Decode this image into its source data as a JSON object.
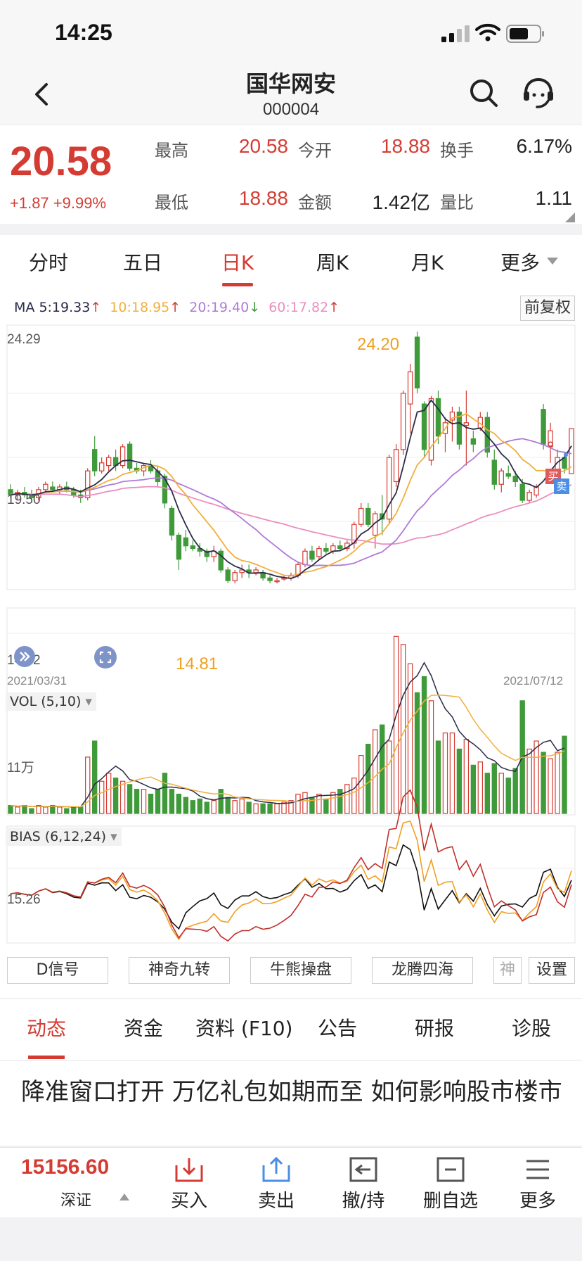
{
  "status_bar": {
    "time": "14:25"
  },
  "header": {
    "title": "国华网安",
    "code": "000004"
  },
  "quote": {
    "price": "20.58",
    "change": "+1.87 +9.99%",
    "stats": [
      {
        "label": "最高",
        "value": "20.58"
      },
      {
        "label": "今开",
        "value": "18.88"
      },
      {
        "label": "换手",
        "value": "6.17%"
      },
      {
        "label": "最低",
        "value": "18.88"
      },
      {
        "label": "金额",
        "value": "1.42亿"
      },
      {
        "label": "量比",
        "value": "1.11"
      }
    ]
  },
  "period_tabs": [
    "分时",
    "五日",
    "日K",
    "周K",
    "月K",
    "更多"
  ],
  "active_period": "日K",
  "ma_legend": {
    "ma": "MA",
    "ma5": "5:19.33",
    "ma10": "10:18.95",
    "ma20": "20:19.40",
    "ma60": "60:17.82"
  },
  "adjust_button": "前复权",
  "main_chart_labels": {
    "y_top": "24.29",
    "y_mid": "19.50",
    "y_bottom": "14.72",
    "high_marker": "24.20",
    "low_marker": "14.81",
    "date_start": "2021/03/31",
    "date_end": "2021/07/12",
    "buy_tag": "买",
    "sell_tag": "卖"
  },
  "vol_panel": {
    "label": "VOL (5,10)",
    "y_label": "11万"
  },
  "bias_panel": {
    "label": "BIAS (6,12,24)",
    "y_label": "15.26"
  },
  "function_buttons": [
    "D信号",
    "神奇九转",
    "牛熊操盘",
    "龙腾四海",
    "神",
    "设置"
  ],
  "detail_tabs": [
    "动态",
    "资金",
    "资料 (F10)",
    "公告",
    "研报",
    "诊股"
  ],
  "news_headline": "降准窗口打开 万亿礼包如期而至 如何影响股市楼市",
  "bottom_bar": {
    "index_value": "15156.60",
    "index_name": "深证",
    "buttons": [
      "买入",
      "卖出",
      "撤/持",
      "删自选",
      "更多"
    ]
  },
  "colors": {
    "up": "#d43c33",
    "down": "#3f9a3a",
    "ma5": "#2b2b4a",
    "ma10": "#f0b03c",
    "ma20": "#b07ad8",
    "ma60": "#ea8ec0",
    "blue_button": "#4a8ee6"
  },
  "chart_data": [
    {
      "type": "candlestick",
      "title": "",
      "date_range": [
        "2021/03/31",
        "2021/07/12"
      ],
      "ylim": [
        14.72,
        24.29
      ],
      "y_ticks": [
        24.29,
        19.5,
        14.72
      ],
      "annotations": [
        {
          "label": "24.20",
          "kind": "high"
        },
        {
          "label": "14.81",
          "kind": "low"
        }
      ],
      "series": [
        {
          "name": "MA5",
          "latest": 19.33
        },
        {
          "name": "MA10",
          "latest": 18.95
        },
        {
          "name": "MA20",
          "latest": 19.4
        },
        {
          "name": "MA60",
          "latest": 17.82
        }
      ],
      "ohlc": [
        [
          18.3,
          18.5,
          18.0,
          18.1
        ],
        [
          18.1,
          18.3,
          17.9,
          18.2
        ],
        [
          18.2,
          18.4,
          18.0,
          18.1
        ],
        [
          18.1,
          18.3,
          17.9,
          18.0
        ],
        [
          18.0,
          18.4,
          17.9,
          18.3
        ],
        [
          18.3,
          18.6,
          18.2,
          18.5
        ],
        [
          18.4,
          18.6,
          18.2,
          18.3
        ],
        [
          18.3,
          18.5,
          18.1,
          18.4
        ],
        [
          18.4,
          18.6,
          18.2,
          18.3
        ],
        [
          18.3,
          18.4,
          18.0,
          18.1
        ],
        [
          18.1,
          18.3,
          17.8,
          18.0
        ],
        [
          18.0,
          19.1,
          17.9,
          19.0
        ],
        [
          19.8,
          20.3,
          18.8,
          19.0
        ],
        [
          19.0,
          19.5,
          18.9,
          19.3
        ],
        [
          19.2,
          19.6,
          19.0,
          19.5
        ],
        [
          19.5,
          19.8,
          19.0,
          19.2
        ],
        [
          19.2,
          20.0,
          19.1,
          19.9
        ],
        [
          20.0,
          20.1,
          19.0,
          19.1
        ],
        [
          19.1,
          19.3,
          18.9,
          19.0
        ],
        [
          19.0,
          19.3,
          18.8,
          19.2
        ],
        [
          19.2,
          19.4,
          18.9,
          19.0
        ],
        [
          19.0,
          19.2,
          18.4,
          18.6
        ],
        [
          18.8,
          18.9,
          17.6,
          17.8
        ],
        [
          17.6,
          17.7,
          16.4,
          16.6
        ],
        [
          16.6,
          16.7,
          15.3,
          15.7
        ],
        [
          16.5,
          16.8,
          16.0,
          16.2
        ],
        [
          16.2,
          16.4,
          16.0,
          16.1
        ],
        [
          16.1,
          16.3,
          15.8,
          16.0
        ],
        [
          16.0,
          16.1,
          15.6,
          15.8
        ],
        [
          15.8,
          16.2,
          15.6,
          16.0
        ],
        [
          16.0,
          16.1,
          15.2,
          15.3
        ],
        [
          15.3,
          15.4,
          14.81,
          14.9
        ],
        [
          14.9,
          15.3,
          14.8,
          15.2
        ],
        [
          15.2,
          15.5,
          15.0,
          15.3
        ],
        [
          15.3,
          15.5,
          15.0,
          15.2
        ],
        [
          15.2,
          15.4,
          15.1,
          15.3
        ],
        [
          15.2,
          15.3,
          14.9,
          15.0
        ],
        [
          15.0,
          15.1,
          14.8,
          14.9
        ],
        [
          14.9,
          15.0,
          14.8,
          14.9
        ],
        [
          15.0,
          15.1,
          14.9,
          15.0
        ],
        [
          15.0,
          15.2,
          14.9,
          15.1
        ],
        [
          15.1,
          15.6,
          15.0,
          15.5
        ],
        [
          15.5,
          16.1,
          15.4,
          16.0
        ],
        [
          16.0,
          16.2,
          15.6,
          15.7
        ],
        [
          15.8,
          16.2,
          15.7,
          16.1
        ],
        [
          16.1,
          16.3,
          15.9,
          16.0
        ],
        [
          16.0,
          16.3,
          15.9,
          16.2
        ],
        [
          16.2,
          16.4,
          16.0,
          16.1
        ],
        [
          16.1,
          16.4,
          16.0,
          16.3
        ],
        [
          16.3,
          17.1,
          16.1,
          17.0
        ],
        [
          17.0,
          17.8,
          16.9,
          17.6
        ],
        [
          17.6,
          17.8,
          16.9,
          17.0
        ],
        [
          16.6,
          17.5,
          16.1,
          17.4
        ],
        [
          17.4,
          18.1,
          16.6,
          17.2
        ],
        [
          17.2,
          19.6,
          17.0,
          19.5
        ],
        [
          18.6,
          20.0,
          18.4,
          19.8
        ],
        [
          19.8,
          22.0,
          19.6,
          21.9
        ],
        [
          21.5,
          23.0,
          20.4,
          22.7
        ],
        [
          24.0,
          24.2,
          21.9,
          22.1
        ],
        [
          21.5,
          21.6,
          19.5,
          19.8
        ],
        [
          19.4,
          21.8,
          19.2,
          21.7
        ],
        [
          21.7,
          22.0,
          20.0,
          20.3
        ],
        [
          20.4,
          21.0,
          19.7,
          20.8
        ],
        [
          20.9,
          21.4,
          20.1,
          21.2
        ],
        [
          21.2,
          21.4,
          19.8,
          20.0
        ],
        [
          20.7,
          22.0,
          19.2,
          20.8
        ],
        [
          20.2,
          20.5,
          19.7,
          20.0
        ],
        [
          20.6,
          21.2,
          20.5,
          21.0
        ],
        [
          21.0,
          21.2,
          19.5,
          19.7
        ],
        [
          19.4,
          19.8,
          18.3,
          18.5
        ],
        [
          18.5,
          19.1,
          18.2,
          19.0
        ],
        [
          18.9,
          19.2,
          18.7,
          18.8
        ],
        [
          18.8,
          19.0,
          18.4,
          18.6
        ],
        [
          18.5,
          18.7,
          17.8,
          17.9
        ],
        [
          17.9,
          18.3,
          17.8,
          18.2
        ],
        [
          18.1,
          18.5,
          18.0,
          18.4
        ],
        [
          21.3,
          21.5,
          19.8,
          20.0
        ],
        [
          19.9,
          20.8,
          19.3,
          20.5
        ],
        [
          19.0,
          19.8,
          18.8,
          19.5
        ],
        [
          19.5,
          19.7,
          18.9,
          19.1
        ],
        [
          18.9,
          20.6,
          18.9,
          20.58
        ]
      ],
      "volume_wan": [
        0.5,
        0.4,
        0.5,
        0.3,
        0.5,
        0.4,
        0.5,
        0.4,
        0.3,
        0.4,
        0.4,
        3.5,
        4.5,
        2.0,
        2.5,
        2.2,
        2.0,
        1.8,
        1.5,
        1.5,
        1.2,
        1.5,
        2.5,
        1.5,
        1.2,
        1.0,
        0.8,
        0.9,
        0.7,
        0.8,
        1.5,
        1.0,
        0.8,
        0.9,
        0.7,
        0.6,
        0.6,
        0.6,
        0.6,
        0.7,
        0.8,
        1.2,
        1.3,
        1.0,
        1.2,
        0.9,
        1.3,
        1.5,
        1.8,
        2.2,
        3.6,
        4.3,
        5.2,
        5.5,
        4.5,
        11.0,
        10.5,
        9.3,
        7.5,
        8.5,
        7.0,
        4.5,
        5.0,
        5.0,
        4.0,
        4.6,
        3.0,
        3.2,
        2.5,
        3.1,
        2.5,
        2.2,
        2.8,
        7.0,
        4.0,
        4.5,
        3.8,
        3.4,
        3.8,
        4.8
      ],
      "volume_ylabel": "11万",
      "bias_ylabel": "15.26"
    }
  ]
}
